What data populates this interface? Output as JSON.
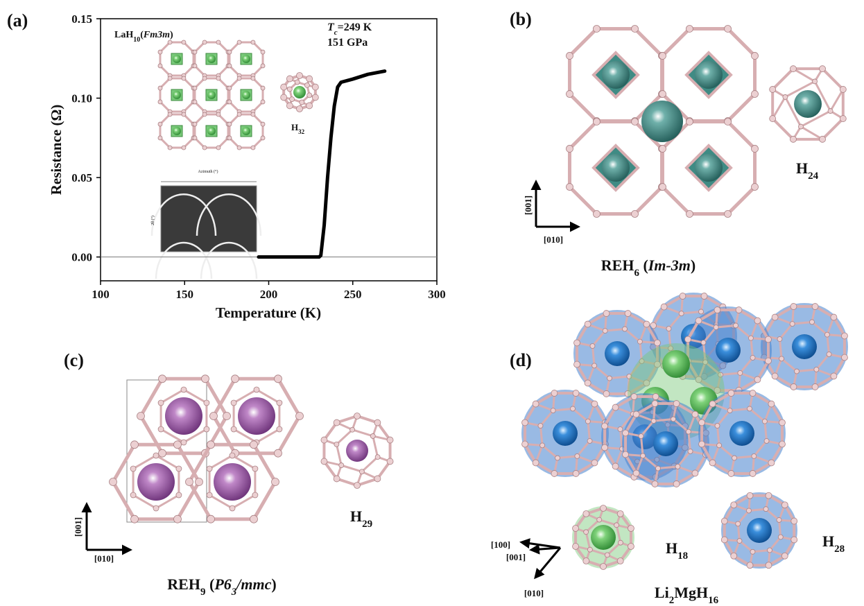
{
  "chart_data": {
    "type": "line",
    "panel_label": "(a)",
    "xlabel": "Temperature (K)",
    "ylabel": "Resistance (Ω)",
    "x": [
      194,
      210,
      220,
      230,
      231,
      233,
      235,
      237,
      239,
      241,
      243,
      250,
      259,
      269
    ],
    "values": [
      0,
      0,
      0,
      0,
      0.001,
      0.02,
      0.05,
      0.075,
      0.095,
      0.107,
      0.11,
      0.112,
      0.115,
      0.117
    ],
    "color": "#000000",
    "xlim": [
      100,
      300
    ],
    "xticks": [
      100,
      150,
      200,
      250,
      300
    ],
    "ylim": [
      -0.015,
      0.15
    ],
    "yticks": [
      {
        "value": 0,
        "label": "0.00"
      },
      0.05,
      {
        "value": 0.1,
        "label": "0.10"
      },
      0.15
    ],
    "annotations": {
      "structure": [
        "LaH",
        "10",
        "(",
        "Fm3m",
        ")"
      ],
      "tc": [
        "T",
        "c",
        "=249 K"
      ],
      "pressure": "151 GPa",
      "cage": [
        "H",
        "32"
      ],
      "inset_xlabel": "Azimuth (°)",
      "inset_ylabel": "2θ (°)"
    }
  },
  "panels": [
    {
      "label": "(b)",
      "cage": [
        "H",
        "24"
      ],
      "axes": [
        "[001]",
        "[010]"
      ],
      "formula": [
        "REH",
        "6",
        " (",
        "Im-3m",
        ")"
      ]
    },
    {
      "label": "(c)",
      "cage": [
        "H",
        "29"
      ],
      "axes": [
        "[001]",
        "[010]"
      ],
      "formula": [
        "REH",
        "9",
        " (",
        "P6",
        "3",
        "/mmc",
        ")"
      ]
    },
    {
      "label": "(d)",
      "cages": [
        [
          "H",
          "18"
        ],
        [
          "H",
          "28"
        ]
      ],
      "axes": [
        "[100]",
        "[001]",
        "[010]"
      ],
      "formula": [
        "Li",
        "2",
        "MgH",
        "16"
      ]
    }
  ]
}
